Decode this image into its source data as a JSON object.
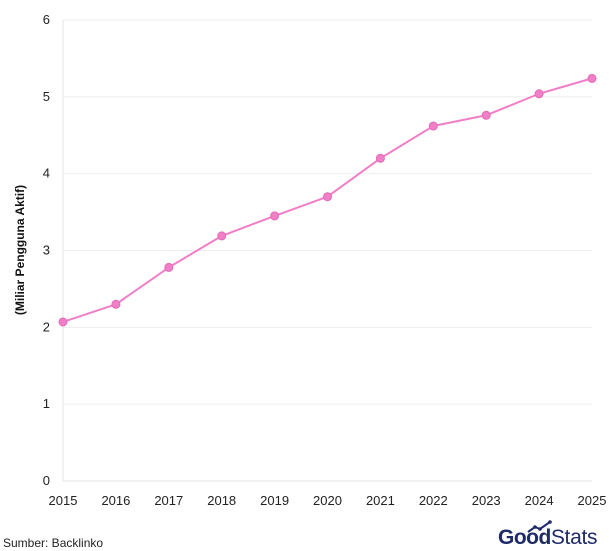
{
  "chart_data": {
    "type": "line",
    "title": "",
    "xlabel": "",
    "ylabel": "(Miliar Pengguna Aktif)",
    "x": [
      "2015",
      "2016",
      "2017",
      "2018",
      "2019",
      "2020",
      "2021",
      "2022",
      "2023",
      "2024",
      "2025"
    ],
    "series": [
      {
        "values": [
          2.07,
          2.3,
          2.78,
          3.19,
          3.45,
          3.7,
          4.2,
          4.62,
          4.76,
          5.04,
          5.24
        ],
        "color": "#f07fc8"
      }
    ],
    "ylim": [
      0,
      6
    ],
    "yticks": [
      "0",
      "1",
      "2",
      "3",
      "4",
      "5",
      "6"
    ],
    "grid": true,
    "legend": "none"
  },
  "footer": {
    "source": "Sumber: Backlinko",
    "logo_good": "Good",
    "logo_stats": "Stats"
  },
  "colors": {
    "line": "#f07fc8",
    "marker_stroke": "#e36ab6",
    "logo": "#1f2a6b"
  }
}
